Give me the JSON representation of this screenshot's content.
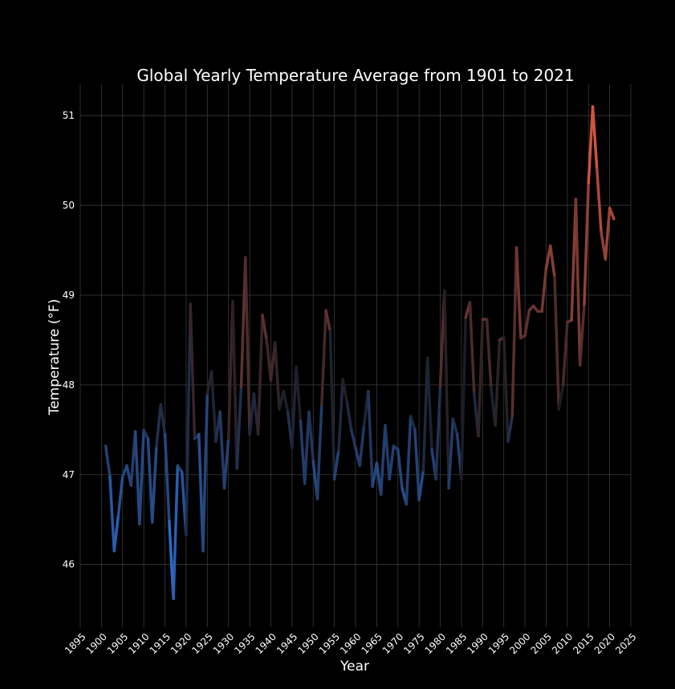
{
  "chart_data": {
    "type": "line",
    "title": "Global Yearly Temperature Average from 1901 to 2021",
    "xlabel": "Year",
    "ylabel": "Temperature (°F)",
    "xlim": [
      1895,
      2025
    ],
    "ylim": [
      45.3,
      51.35
    ],
    "xticks": [
      1895,
      1900,
      1905,
      1910,
      1915,
      1920,
      1925,
      1930,
      1935,
      1940,
      1945,
      1950,
      1955,
      1960,
      1965,
      1970,
      1975,
      1980,
      1985,
      1990,
      1995,
      2000,
      2005,
      2010,
      2015,
      2020,
      2025
    ],
    "yticks": [
      46,
      47,
      48,
      49,
      50,
      51
    ],
    "grid": true,
    "legend": "none",
    "colors": {
      "background": "#000000",
      "cold": "#2e78e6",
      "neutral": "#1c1c24",
      "warm": "#e05a40",
      "grid": "#3a3a3a",
      "text": "#ffffff"
    },
    "series": [
      {
        "x": [
          1901,
          1902,
          1903,
          1904,
          1905,
          1906,
          1907,
          1908,
          1909,
          1910,
          1911,
          1912,
          1913,
          1914,
          1915,
          1916,
          1917,
          1918,
          1919,
          1920,
          1921,
          1922,
          1923,
          1924,
          1925,
          1926,
          1927,
          1928,
          1929,
          1930,
          1931,
          1932,
          1933,
          1934,
          1935,
          1936,
          1937,
          1938,
          1939,
          1940,
          1941,
          1942,
          1943,
          1944,
          1945,
          1946,
          1947,
          1948,
          1949,
          1950,
          1951,
          1952,
          1953,
          1954,
          1955,
          1956,
          1957,
          1958,
          1959,
          1960,
          1961,
          1962,
          1963,
          1964,
          1965,
          1966,
          1967,
          1968,
          1969,
          1970,
          1971,
          1972,
          1973,
          1974,
          1975,
          1976,
          1977,
          1978,
          1979,
          1980,
          1981,
          1982,
          1983,
          1984,
          1985,
          1986,
          1987,
          1988,
          1989,
          1990,
          1991,
          1992,
          1993,
          1994,
          1995,
          1996,
          1997,
          1998,
          1999,
          2000,
          2001,
          2002,
          2003,
          2004,
          2005,
          2006,
          2007,
          2008,
          2009,
          2010,
          2011,
          2012,
          2013,
          2014,
          2015,
          2016,
          2017,
          2018,
          2019,
          2020,
          2021
        ],
        "values": [
          47.32,
          46.98,
          46.15,
          46.55,
          46.98,
          47.1,
          46.88,
          47.48,
          46.45,
          47.5,
          47.4,
          46.47,
          47.32,
          47.78,
          47.45,
          46.48,
          45.62,
          47.1,
          47.03,
          46.33,
          48.9,
          47.4,
          47.45,
          46.15,
          47.9,
          48.15,
          47.37,
          47.7,
          46.85,
          47.4,
          48.93,
          47.07,
          47.98,
          49.42,
          47.45,
          47.9,
          47.45,
          48.78,
          48.5,
          48.05,
          48.47,
          47.73,
          47.93,
          47.7,
          47.3,
          48.2,
          47.6,
          46.9,
          47.7,
          47.15,
          46.73,
          47.78,
          48.83,
          48.6,
          46.95,
          47.27,
          48.06,
          47.8,
          47.5,
          47.3,
          47.1,
          47.55,
          47.93,
          46.87,
          47.13,
          46.78,
          47.55,
          46.95,
          47.32,
          47.28,
          46.85,
          46.67,
          47.65,
          47.5,
          46.72,
          47.05,
          48.3,
          47.28,
          46.95,
          47.98,
          49.05,
          46.85,
          47.62,
          47.45,
          46.95,
          48.75,
          48.92,
          47.9,
          47.43,
          48.73,
          48.73,
          47.97,
          47.55,
          48.5,
          48.53,
          47.37,
          47.65,
          49.53,
          48.52,
          48.55,
          48.83,
          48.88,
          48.82,
          48.82,
          49.3,
          49.55,
          49.2,
          47.73,
          48.0,
          48.7,
          48.72,
          50.07,
          48.22,
          48.9,
          50.25,
          51.1,
          50.4,
          49.7,
          49.4,
          49.97,
          49.85
        ]
      }
    ]
  }
}
